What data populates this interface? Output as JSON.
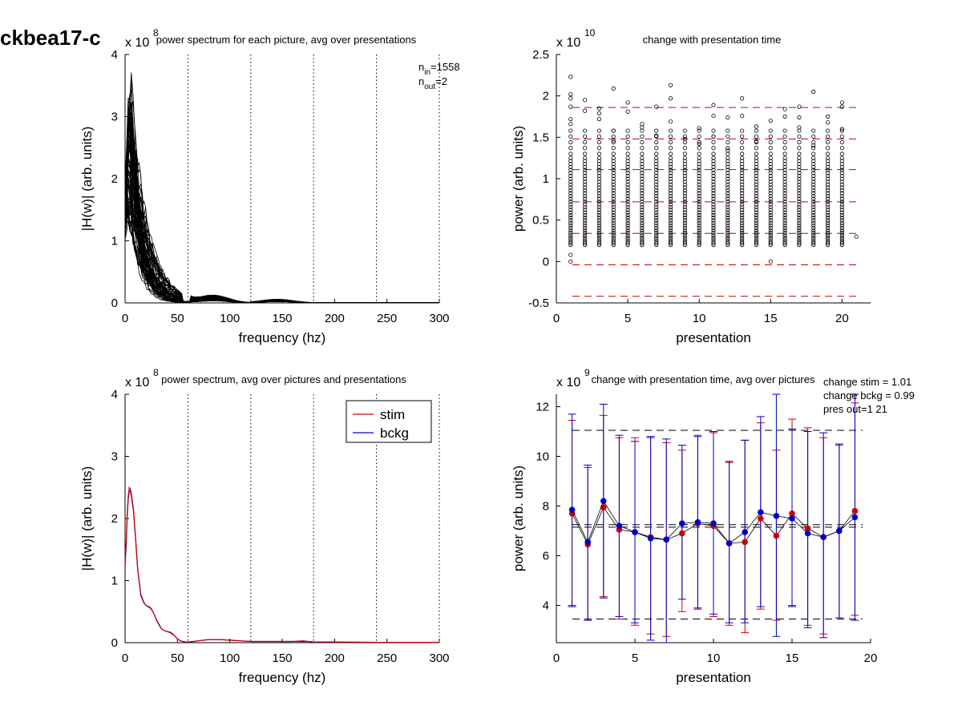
{
  "figure_title": "ckbea17-c",
  "chart_data": [
    {
      "id": "p1",
      "type": "line",
      "title": "power spectrum for each picture, avg over presentations",
      "xlabel": "frequency (hz)",
      "ylabel": "|H(w)| (arb. units)",
      "exponent": "x 10",
      "exponent_power": "8",
      "xlim": [
        0,
        300
      ],
      "ylim": [
        0,
        4
      ],
      "xticks": [
        0,
        50,
        100,
        150,
        200,
        250,
        300
      ],
      "yticks": [
        0,
        1,
        2,
        3,
        4
      ],
      "vlines": [
        60,
        120,
        180,
        240,
        300
      ],
      "annotation": {
        "n_in_label": "n",
        "n_in_sub": "in",
        "n_in_value": "=1558",
        "n_out_label": "n",
        "n_out_sub": "out",
        "n_out_value": "=2"
      },
      "line_color": "#000000",
      "trace_count": 60
    },
    {
      "id": "p2",
      "type": "scatter",
      "title": "change with presentation time",
      "xlabel": "presentation",
      "ylabel": "power (arb. units)",
      "exponent": "x 10",
      "exponent_power": "10",
      "xlim": [
        0,
        22
      ],
      "ylim": [
        -0.5,
        2.5
      ],
      "xticks": [
        0,
        5,
        10,
        15,
        20
      ],
      "yticks": [
        -0.5,
        0,
        0.5,
        1,
        1.5,
        2,
        2.5
      ],
      "ytick_labels": [
        "-0.5",
        "0",
        "0.5",
        "1",
        "1.5",
        "2",
        "2.5"
      ],
      "hlines": [
        1.86,
        1.48,
        1.11,
        0.72,
        0.34,
        -0.04,
        -0.42
      ],
      "hline_color": "#cc0000",
      "marker_color": "#000000",
      "presentations": [
        1,
        2,
        3,
        4,
        5,
        6,
        7,
        8,
        9,
        10,
        11,
        12,
        13,
        14,
        15,
        16,
        17,
        18,
        19,
        20
      ],
      "dense_range": [
        0.2,
        1.25
      ],
      "outliers": [
        [
          1,
          2.23
        ],
        [
          1,
          2.02
        ],
        [
          1,
          1.97
        ],
        [
          1,
          1.87
        ],
        [
          1,
          1.72
        ],
        [
          1,
          1.66
        ],
        [
          1,
          0.08
        ],
        [
          1,
          0.0
        ],
        [
          2,
          1.95
        ],
        [
          2,
          1.82
        ],
        [
          3,
          1.85
        ],
        [
          3,
          1.79
        ],
        [
          3,
          1.72
        ],
        [
          4,
          2.09
        ],
        [
          4,
          1.58
        ],
        [
          4,
          1.46
        ],
        [
          5,
          1.92
        ],
        [
          5,
          1.81
        ],
        [
          6,
          1.66
        ],
        [
          6,
          1.62
        ],
        [
          7,
          1.87
        ],
        [
          7,
          1.52
        ],
        [
          8,
          2.13
        ],
        [
          8,
          1.97
        ],
        [
          8,
          1.69
        ],
        [
          9,
          1.48
        ],
        [
          10,
          1.61
        ],
        [
          10,
          1.42
        ],
        [
          11,
          1.89
        ],
        [
          11,
          1.76
        ],
        [
          11,
          1.51
        ],
        [
          12,
          1.74
        ],
        [
          12,
          1.34
        ],
        [
          13,
          1.97
        ],
        [
          13,
          1.76
        ],
        [
          14,
          1.63
        ],
        [
          14,
          1.45
        ],
        [
          15,
          1.7
        ],
        [
          15,
          0.0
        ],
        [
          16,
          1.84
        ],
        [
          16,
          1.75
        ],
        [
          17,
          1.87
        ],
        [
          17,
          1.74
        ],
        [
          17,
          1.62
        ],
        [
          18,
          2.05
        ],
        [
          18,
          1.4
        ],
        [
          19,
          1.75
        ],
        [
          19,
          1.68
        ],
        [
          20,
          1.92
        ],
        [
          20,
          1.87
        ],
        [
          20,
          1.6
        ],
        [
          21,
          0.3
        ]
      ]
    },
    {
      "id": "p3",
      "type": "line",
      "title": "power spectrum, avg over pictures and presentations",
      "xlabel": "frequency (hz)",
      "ylabel": "|H(w)| (arb. units)",
      "exponent": "x 10",
      "exponent_power": "8",
      "xlim": [
        0,
        300
      ],
      "ylim": [
        0,
        4
      ],
      "xticks": [
        0,
        50,
        100,
        150,
        200,
        250,
        300
      ],
      "yticks": [
        0,
        1,
        2,
        3,
        4
      ],
      "vlines": [
        60,
        120,
        180,
        240,
        300
      ],
      "legend_position": "top-right",
      "series": [
        {
          "name": "stim",
          "color": "#cc0000",
          "x": [
            0,
            1,
            2,
            3,
            4,
            5,
            6,
            8,
            10,
            12,
            15,
            18,
            20,
            23,
            25,
            28,
            30,
            33,
            35,
            38,
            40,
            43,
            45,
            48,
            50,
            53,
            55,
            58,
            60,
            65,
            70,
            75,
            80,
            90,
            100,
            110,
            120,
            140,
            160,
            170,
            175,
            180,
            200,
            240,
            300
          ],
          "values": [
            1.25,
            1.6,
            2.05,
            2.35,
            2.5,
            2.48,
            2.4,
            2.15,
            1.7,
            1.2,
            0.78,
            0.65,
            0.6,
            0.58,
            0.55,
            0.45,
            0.37,
            0.28,
            0.22,
            0.19,
            0.18,
            0.17,
            0.15,
            0.1,
            0.06,
            0.03,
            0.02,
            0.01,
            0.01,
            0.02,
            0.03,
            0.04,
            0.05,
            0.05,
            0.04,
            0.03,
            0.02,
            0.02,
            0.02,
            0.03,
            0.02,
            0.01,
            0.01,
            0.005,
            0.005
          ]
        },
        {
          "name": "bckg",
          "color": "#0000cc",
          "x": [
            0,
            1,
            2,
            3,
            4,
            5,
            6,
            8,
            10,
            12,
            15,
            18,
            20,
            23,
            25,
            28,
            30,
            33,
            35,
            38,
            40,
            43,
            45,
            48,
            50,
            53,
            55,
            58,
            60,
            65,
            70,
            75,
            80,
            90,
            100,
            110,
            120,
            140,
            160,
            170,
            175,
            180,
            200,
            240,
            300
          ],
          "values": [
            1.22,
            1.55,
            2.0,
            2.3,
            2.45,
            2.44,
            2.36,
            2.12,
            1.68,
            1.18,
            0.76,
            0.64,
            0.6,
            0.57,
            0.54,
            0.45,
            0.36,
            0.27,
            0.22,
            0.19,
            0.18,
            0.16,
            0.14,
            0.1,
            0.06,
            0.03,
            0.02,
            0.01,
            0.01,
            0.02,
            0.03,
            0.04,
            0.05,
            0.05,
            0.04,
            0.03,
            0.02,
            0.02,
            0.02,
            0.02,
            0.02,
            0.01,
            0.01,
            0.005,
            0.005
          ]
        }
      ]
    },
    {
      "id": "p4",
      "type": "line",
      "title": "change with presentation time, avg over pictures",
      "xlabel": "presentation",
      "ylabel": "power (arb. units)",
      "exponent": "x 10",
      "exponent_power": "9",
      "xlim": [
        0,
        20
      ],
      "ylim": [
        2.5,
        12.5
      ],
      "xticks": [
        0,
        5,
        10,
        15,
        20
      ],
      "yticks": [
        4,
        6,
        8,
        10,
        12
      ],
      "hlines": [
        11.05,
        7.25,
        7.15,
        3.45
      ],
      "hline_color": "#000000",
      "annotation_lines": [
        "change stim = 1.01",
        "change bckg = 0.99",
        "pres out=1 21"
      ],
      "x": [
        1,
        2,
        3,
        4,
        5,
        6,
        7,
        8,
        9,
        10,
        11,
        12,
        13,
        14,
        15,
        16,
        17,
        18,
        19
      ],
      "series": [
        {
          "name": "stim",
          "color": "#cc0000",
          "values": [
            7.7,
            6.45,
            7.95,
            7.05,
            6.95,
            6.75,
            6.65,
            6.9,
            7.3,
            7.2,
            6.5,
            6.55,
            7.5,
            6.8,
            7.7,
            7.1,
            6.75,
            7.0,
            7.8
          ],
          "err_low": [
            4.0,
            3.4,
            4.35,
            3.45,
            3.2,
            2.85,
            2.75,
            3.75,
            3.9,
            3.55,
            3.2,
            2.9,
            3.85,
            3.4,
            4.0,
            3.2,
            2.85,
            3.5,
            3.6
          ],
          "err_high": [
            11.45,
            9.55,
            11.65,
            10.75,
            10.75,
            10.75,
            10.55,
            10.25,
            10.85,
            10.95,
            9.75,
            10.65,
            11.35,
            10.25,
            11.5,
            11.15,
            10.75,
            10.45,
            12.15
          ]
        },
        {
          "name": "bckg",
          "color": "#0000cc",
          "values": [
            7.85,
            6.55,
            8.2,
            7.2,
            6.95,
            6.7,
            6.65,
            7.3,
            7.35,
            7.3,
            6.5,
            6.95,
            7.75,
            7.6,
            7.5,
            6.9,
            6.75,
            7.0,
            7.55
          ],
          "err_low": [
            3.95,
            3.4,
            4.3,
            3.55,
            3.3,
            2.6,
            2.5,
            4.25,
            3.85,
            3.65,
            3.3,
            3.3,
            3.95,
            2.75,
            3.95,
            3.1,
            2.7,
            3.5,
            3.4
          ],
          "err_high": [
            11.7,
            9.65,
            12.1,
            10.85,
            10.6,
            10.8,
            10.7,
            10.45,
            10.8,
            11.0,
            9.8,
            10.65,
            11.6,
            12.5,
            11.1,
            11.0,
            10.95,
            10.5,
            12.5
          ]
        }
      ]
    }
  ]
}
